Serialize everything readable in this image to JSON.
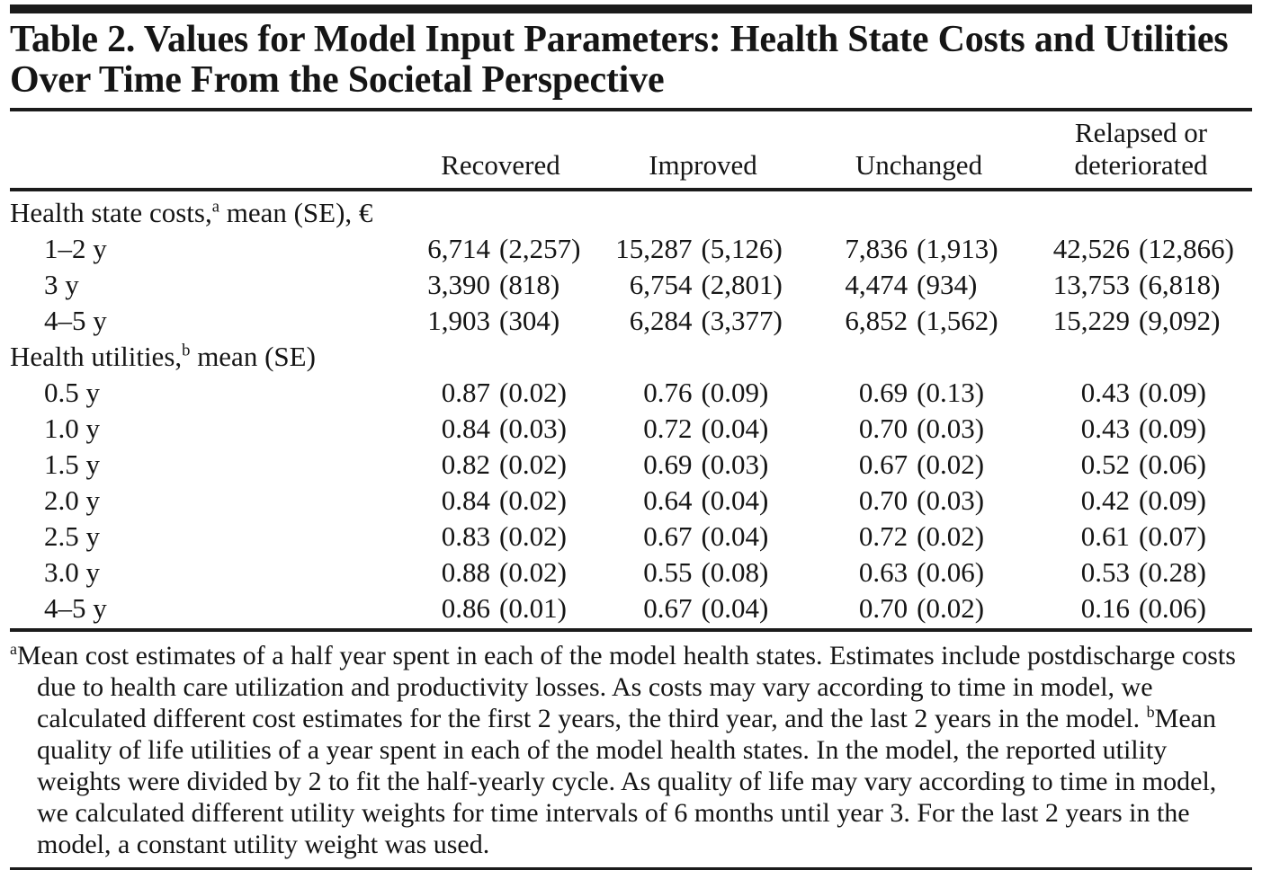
{
  "table": {
    "title": "Table 2. Values for Model Input Parameters: Health State Costs and Utilities Over Time From the Societal Perspective",
    "columns": [
      "Recovered",
      "Improved",
      "Unchanged",
      "Relapsed or deteriorated"
    ],
    "sections": [
      {
        "label": {
          "pre": "Health state costs,",
          "marker": "a",
          "post": " mean (SE), €"
        },
        "rows": [
          {
            "label": "1–2 y",
            "cells": [
              [
                "6,714",
                "(2,257)"
              ],
              [
                "15,287",
                "(5,126)"
              ],
              [
                "7,836",
                "(1,913)"
              ],
              [
                "42,526",
                "(12,866)"
              ]
            ]
          },
          {
            "label": "3 y",
            "cells": [
              [
                "3,390",
                "(818)"
              ],
              [
                "6,754",
                "(2,801)"
              ],
              [
                "4,474",
                "(934)"
              ],
              [
                "13,753",
                "(6,818)"
              ]
            ]
          },
          {
            "label": "4–5 y",
            "cells": [
              [
                "1,903",
                "(304)"
              ],
              [
                "6,284",
                "(3,377)"
              ],
              [
                "6,852",
                "(1,562)"
              ],
              [
                "15,229",
                "(9,092)"
              ]
            ]
          }
        ]
      },
      {
        "label": {
          "pre": "Health utilities,",
          "marker": "b",
          "post": " mean (SE)"
        },
        "rows": [
          {
            "label": "0.5 y",
            "cells": [
              [
                "0.87",
                "(0.02)"
              ],
              [
                "0.76",
                "(0.09)"
              ],
              [
                "0.69",
                "(0.13)"
              ],
              [
                "0.43",
                "(0.09)"
              ]
            ]
          },
          {
            "label": "1.0 y",
            "cells": [
              [
                "0.84",
                "(0.03)"
              ],
              [
                "0.72",
                "(0.04)"
              ],
              [
                "0.70",
                "(0.03)"
              ],
              [
                "0.43",
                "(0.09)"
              ]
            ]
          },
          {
            "label": "1.5 y",
            "cells": [
              [
                "0.82",
                "(0.02)"
              ],
              [
                "0.69",
                "(0.03)"
              ],
              [
                "0.67",
                "(0.02)"
              ],
              [
                "0.52",
                "(0.06)"
              ]
            ]
          },
          {
            "label": "2.0 y",
            "cells": [
              [
                "0.84",
                "(0.02)"
              ],
              [
                "0.64",
                "(0.04)"
              ],
              [
                "0.70",
                "(0.03)"
              ],
              [
                "0.42",
                "(0.09)"
              ]
            ]
          },
          {
            "label": "2.5 y",
            "cells": [
              [
                "0.83",
                "(0.02)"
              ],
              [
                "0.67",
                "(0.04)"
              ],
              [
                "0.72",
                "(0.02)"
              ],
              [
                "0.61",
                "(0.07)"
              ]
            ]
          },
          {
            "label": "3.0 y",
            "cells": [
              [
                "0.88",
                "(0.02)"
              ],
              [
                "0.55",
                "(0.08)"
              ],
              [
                "0.63",
                "(0.06)"
              ],
              [
                "0.53",
                "(0.28)"
              ]
            ]
          },
          {
            "label": "4–5 y",
            "cells": [
              [
                "0.86",
                "(0.01)"
              ],
              [
                "0.67",
                "(0.04)"
              ],
              [
                "0.70",
                "(0.02)"
              ],
              [
                "0.16",
                "(0.06)"
              ]
            ]
          }
        ]
      }
    ],
    "footnotes": [
      {
        "marker": "a",
        "text": "Mean cost estimates of a half year spent in each of the model health states. Estimates include postdischarge costs due to health care utilization and productivity losses. As costs may vary according to time in model, we calculated different cost estimates for the first 2 years, the third year, and the last 2 years in the model. "
      },
      {
        "marker": "b",
        "text": "Mean quality of life utilities of a year spent in each of the model health states. In the model, the reported utility weights were divided by 2 to fit the half-yearly cycle. As quality of life may vary according to time in model, we calculated different utility weights for time intervals of 6 months until year 3. For the last 2 years in the model, a constant utility weight was used."
      }
    ]
  }
}
